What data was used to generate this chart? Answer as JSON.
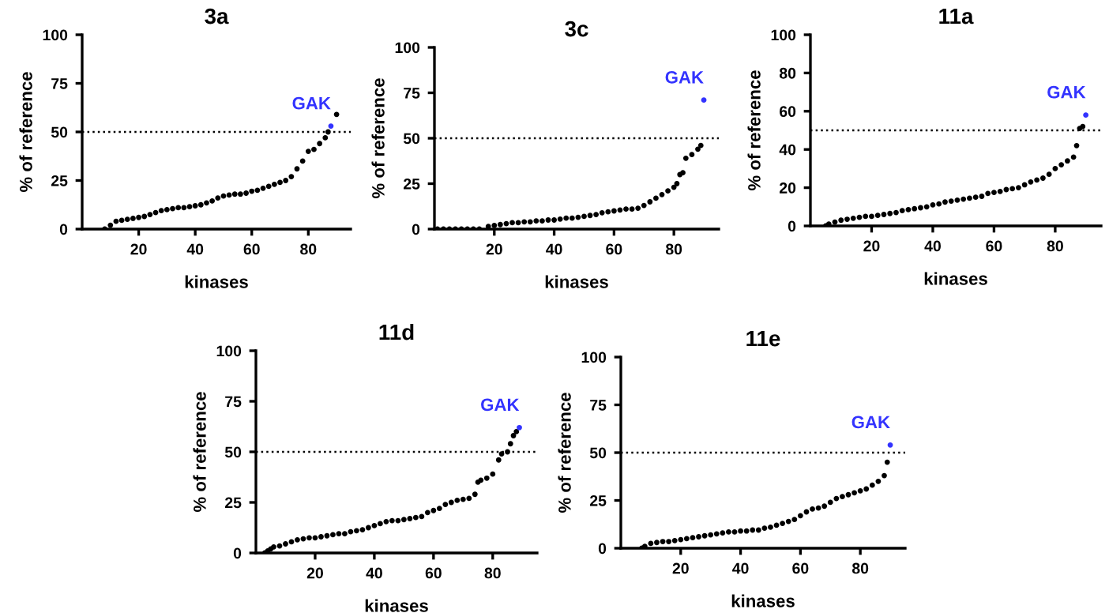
{
  "chart_data": [
    {
      "type": "scatter",
      "title": "3a",
      "xlabel": "kinases",
      "ylabel": "% of reference",
      "xlim": [
        0,
        95
      ],
      "xticks": [
        20,
        40,
        60,
        80
      ],
      "ylim": [
        0,
        100
      ],
      "yticks": [
        0,
        25,
        50,
        75,
        100
      ],
      "marker": "circle",
      "grid": false,
      "ref_lines": [
        {
          "axis": "y",
          "value": 50,
          "line_style": "dotted",
          "color": "#000000"
        }
      ],
      "series": [
        {
          "color": "#000000",
          "x": [
            8,
            10,
            12,
            14,
            16,
            18,
            20,
            22,
            24,
            26,
            28,
            30,
            32,
            34,
            36,
            38,
            40,
            42,
            44,
            46,
            48,
            50,
            52,
            54,
            56,
            58,
            60,
            62,
            64,
            66,
            68,
            70,
            72,
            74,
            76,
            78,
            80,
            82,
            84,
            86,
            87,
            90
          ],
          "values": [
            0,
            2,
            4,
            4.5,
            5,
            5.5,
            6,
            6.5,
            7.5,
            8.5,
            9.5,
            10,
            10.5,
            11,
            11,
            11.5,
            12,
            12.5,
            13.5,
            14.5,
            16,
            17,
            17.5,
            18,
            18,
            18.5,
            19.5,
            20,
            21,
            22,
            23,
            24,
            25,
            27,
            31,
            35,
            40,
            41,
            44,
            47,
            50,
            59
          ]
        },
        {
          "name": "GAK",
          "color": "#3333ff",
          "x": [
            88
          ],
          "values": [
            53
          ]
        }
      ]
    },
    {
      "type": "scatter",
      "title": "3c",
      "xlabel": "kinases",
      "ylabel": "% of reference",
      "xlim": [
        0,
        95
      ],
      "xticks": [
        20,
        40,
        60,
        80
      ],
      "ylim": [
        0,
        100
      ],
      "yticks": [
        0,
        25,
        50,
        75,
        100
      ],
      "marker": "circle",
      "grid": false,
      "ref_lines": [
        {
          "axis": "y",
          "value": 50,
          "line_style": "dotted",
          "color": "#000000"
        }
      ],
      "series": [
        {
          "color": "#000000",
          "x": [
            1,
            3,
            5,
            7,
            9,
            11,
            13,
            15,
            18,
            20,
            22,
            24,
            26,
            28,
            30,
            32,
            34,
            36,
            38,
            40,
            42,
            44,
            46,
            48,
            50,
            52,
            54,
            56,
            58,
            60,
            62,
            64,
            66,
            68,
            70,
            72,
            74,
            76,
            78,
            80,
            81,
            82,
            83,
            84,
            86,
            88,
            89
          ],
          "values": [
            0,
            0,
            0,
            0,
            0,
            0,
            0,
            0,
            1.5,
            2,
            2.5,
            3,
            3.5,
            3.5,
            4,
            4,
            4.5,
            4.5,
            5,
            5,
            5.5,
            6,
            6,
            6.5,
            7,
            7.5,
            8,
            9,
            9.5,
            10,
            10.5,
            11,
            11,
            11.5,
            13,
            15,
            17,
            19,
            21,
            23,
            25,
            30,
            31,
            39,
            41,
            44,
            46
          ]
        },
        {
          "name": "GAK",
          "color": "#3333ff",
          "x": [
            90
          ],
          "values": [
            71
          ]
        }
      ]
    },
    {
      "type": "scatter",
      "title": "11a",
      "xlabel": "kinases",
      "ylabel": "% of reference",
      "xlim": [
        0,
        95
      ],
      "xticks": [
        20,
        40,
        60,
        80
      ],
      "ylim": [
        0,
        100
      ],
      "yticks": [
        0,
        20,
        40,
        60,
        80,
        100
      ],
      "marker": "circle",
      "grid": false,
      "ref_lines": [
        {
          "axis": "y",
          "value": 50,
          "line_style": "dotted",
          "color": "#000000"
        }
      ],
      "series": [
        {
          "color": "#000000",
          "x": [
            5,
            6,
            8,
            10,
            12,
            14,
            16,
            18,
            20,
            22,
            24,
            26,
            28,
            30,
            32,
            34,
            36,
            38,
            40,
            42,
            44,
            46,
            48,
            50,
            52,
            54,
            56,
            58,
            60,
            62,
            64,
            66,
            68,
            70,
            72,
            74,
            76,
            78,
            80,
            82,
            84,
            86,
            87,
            88,
            89
          ],
          "values": [
            0,
            1,
            2,
            3,
            3.5,
            4,
            4.5,
            5,
            5,
            5.5,
            6,
            6.5,
            7,
            8,
            8.5,
            9,
            9.5,
            10,
            11,
            11.5,
            12.5,
            13,
            13.5,
            14,
            14.5,
            15,
            15.5,
            17,
            17.5,
            18,
            19,
            19.5,
            20,
            21.5,
            23,
            24,
            25,
            27,
            30,
            32,
            34,
            36,
            42,
            51,
            52
          ]
        },
        {
          "name": "GAK",
          "color": "#3333ff",
          "x": [
            90
          ],
          "values": [
            58
          ]
        }
      ]
    },
    {
      "type": "scatter",
      "title": "11d",
      "xlabel": "kinases",
      "ylabel": "% of reference",
      "xlim": [
        0,
        95
      ],
      "xticks": [
        20,
        40,
        60,
        80
      ],
      "ylim": [
        0,
        100
      ],
      "yticks": [
        0,
        25,
        50,
        75,
        100
      ],
      "marker": "circle",
      "grid": false,
      "ref_lines": [
        {
          "axis": "y",
          "value": 50,
          "line_style": "dotted",
          "color": "#000000"
        }
      ],
      "series": [
        {
          "color": "#000000",
          "x": [
            3,
            4,
            5,
            6,
            8,
            10,
            12,
            14,
            16,
            18,
            20,
            22,
            24,
            26,
            28,
            30,
            32,
            34,
            36,
            38,
            40,
            42,
            44,
            46,
            48,
            50,
            52,
            54,
            56,
            58,
            60,
            62,
            64,
            66,
            68,
            70,
            72,
            74,
            75,
            76,
            78,
            80,
            82,
            83,
            85,
            86,
            87,
            88
          ],
          "values": [
            0,
            1,
            2,
            3,
            3.5,
            4.5,
            5.5,
            6.5,
            7,
            7.5,
            7.5,
            8,
            8.5,
            9,
            9.5,
            9.5,
            10.5,
            11,
            11.5,
            12.5,
            13.5,
            14.5,
            15.5,
            16,
            16,
            16.5,
            17,
            17.5,
            18,
            20,
            21,
            22,
            24,
            25,
            26,
            26.5,
            27,
            29,
            35,
            36,
            37,
            39,
            46,
            49,
            50,
            54,
            58,
            60
          ]
        },
        {
          "name": "GAK",
          "color": "#3333ff",
          "x": [
            89
          ],
          "values": [
            62
          ]
        }
      ]
    },
    {
      "type": "scatter",
      "title": "11e",
      "xlabel": "kinases",
      "ylabel": "% of reference",
      "xlim": [
        0,
        95
      ],
      "xticks": [
        20,
        40,
        60,
        80
      ],
      "ylim": [
        0,
        100
      ],
      "yticks": [
        0,
        25,
        50,
        75,
        100
      ],
      "marker": "circle",
      "grid": false,
      "ref_lines": [
        {
          "axis": "y",
          "value": 50,
          "line_style": "dotted",
          "color": "#000000"
        }
      ],
      "series": [
        {
          "color": "#000000",
          "x": [
            7,
            8,
            10,
            12,
            14,
            16,
            18,
            20,
            22,
            24,
            26,
            28,
            30,
            32,
            34,
            36,
            38,
            40,
            42,
            44,
            46,
            48,
            50,
            52,
            54,
            56,
            58,
            60,
            62,
            64,
            66,
            68,
            70,
            72,
            74,
            76,
            78,
            80,
            82,
            84,
            86,
            88,
            89
          ],
          "values": [
            0,
            1,
            2.5,
            3,
            3.5,
            3.5,
            4,
            4.5,
            5,
            5.5,
            6,
            6.5,
            7,
            7.5,
            8,
            8.5,
            8.5,
            9,
            9,
            9.5,
            9.5,
            10.5,
            11,
            12,
            13,
            14,
            15,
            17,
            19,
            20.5,
            21,
            22,
            24,
            26,
            27,
            28,
            29,
            30,
            31,
            33,
            35,
            38,
            45
          ]
        },
        {
          "name": "GAK",
          "color": "#3333ff",
          "x": [
            90
          ],
          "values": [
            54
          ]
        }
      ]
    }
  ]
}
